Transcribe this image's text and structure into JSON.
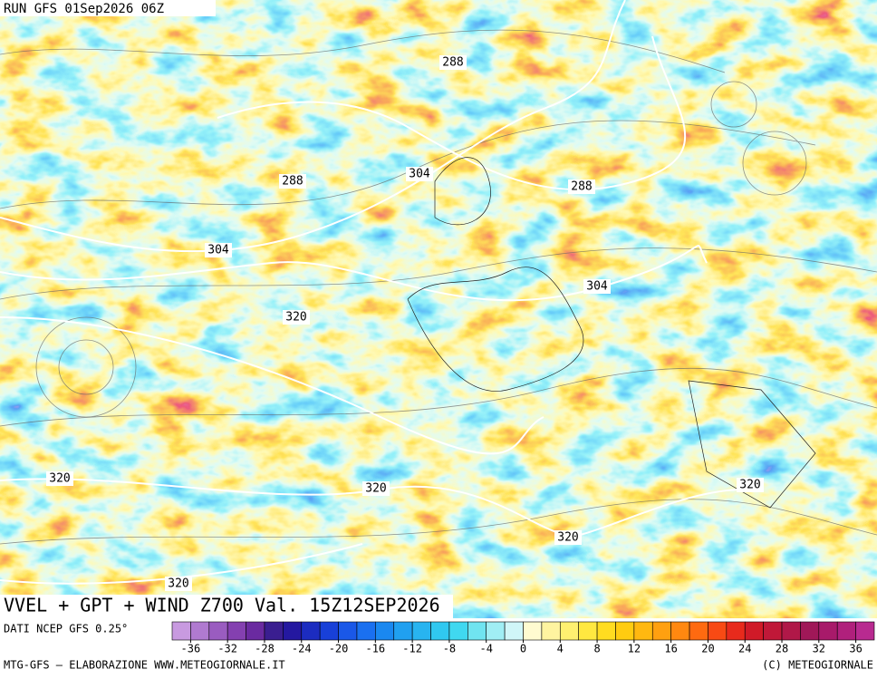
{
  "run_label": "RUN GFS 01Sep2026 06Z",
  "map_title": "VVEL + GPT + WIND Z700 Val. 15Z12SEP2026",
  "contour_labels": [
    "288",
    "288",
    "304",
    "288",
    "304",
    "304",
    "320",
    "320",
    "320",
    "320",
    "320",
    "320"
  ],
  "source": "DATI NCEP GFS 0.25°",
  "footer_left": "MTG-GFS – ELABORAZIONE WWW.METEOGIORNALE.IT",
  "footer_right": "(C) METEOGIORNALE",
  "legend": {
    "lim": [
      -38,
      38
    ],
    "ticks": [
      -36,
      -32,
      -28,
      -24,
      -20,
      -16,
      -12,
      -8,
      -4,
      0,
      4,
      8,
      12,
      16,
      20,
      24,
      28,
      32,
      36
    ],
    "colors": [
      "#c89ae0",
      "#b07ad0",
      "#9a5cc0",
      "#8440b0",
      "#6a2aa0",
      "#3a1e90",
      "#2418a0",
      "#1c2cc0",
      "#1840d8",
      "#1a58e8",
      "#1a70f0",
      "#1a88f0",
      "#20a0f0",
      "#28b4f0",
      "#30c8f0",
      "#40d8f0",
      "#70e4f0",
      "#a0eef4",
      "#d0f6f8",
      "#fffbd0",
      "#fff4a0",
      "#fff070",
      "#ffe840",
      "#ffdc20",
      "#ffcc10",
      "#ffb810",
      "#ffa010",
      "#ff8810",
      "#ff6a10",
      "#f84a14",
      "#e82a1c",
      "#d01a28",
      "#c01838",
      "#b01848",
      "#a01858",
      "#a81a6a",
      "#b0207c",
      "#b82a90"
    ]
  }
}
